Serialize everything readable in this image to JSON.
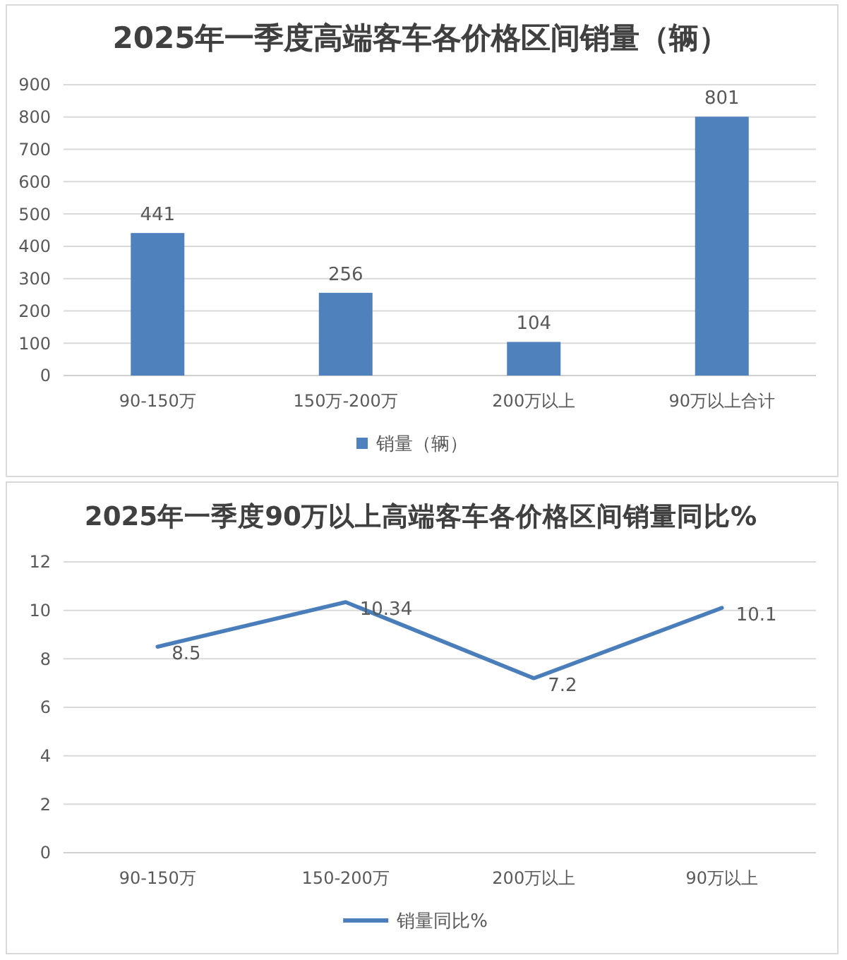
{
  "chart_data": [
    {
      "type": "bar",
      "title": "2025年一季度高端客车各价格区间销量（辆）",
      "categories": [
        "90-150万",
        "150万-200万",
        "200万以上",
        "90万以上合计"
      ],
      "series": [
        {
          "name": "销量（辆）",
          "color": "#4f81bd",
          "values": [
            441,
            256,
            104,
            801
          ]
        }
      ],
      "ylim": [
        0,
        900
      ],
      "yticks": [
        0,
        100,
        200,
        300,
        400,
        500,
        600,
        700,
        800,
        900
      ],
      "grid": "y",
      "legend": "bottom",
      "data_labels": true
    },
    {
      "type": "line",
      "title": "2025年一季度90万以上高端客车各价格区间销量同比%",
      "categories": [
        "90-150万",
        "150-200万",
        "200万以上",
        "90万以上"
      ],
      "series": [
        {
          "name": "销量同比%",
          "color": "#4a7ebb",
          "values": [
            8.5,
            10.34,
            7.2,
            10.1
          ]
        }
      ],
      "ylim": [
        0,
        12
      ],
      "yticks": [
        0,
        2,
        4,
        6,
        8,
        10,
        12
      ],
      "grid": "y",
      "legend": "bottom",
      "data_labels": true
    }
  ]
}
